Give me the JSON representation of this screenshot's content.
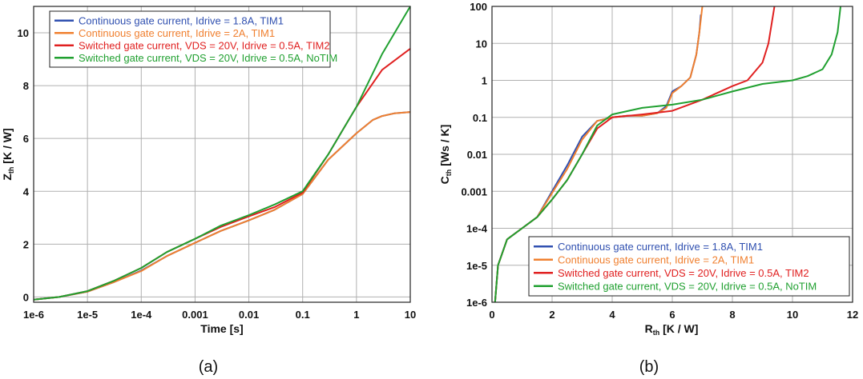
{
  "colors": {
    "ci18": "#3050b0",
    "ci2": "#f08030",
    "sw_tim2": "#e02020",
    "sw_notim": "#20a030"
  },
  "chart_data": [
    {
      "type": "line",
      "caption": "(a)",
      "xlabel": "Time [s]",
      "ylabel_main": "Z",
      "ylabel_sub": "th",
      "ylabel_unit": " [K / W]",
      "xscale": "log",
      "xlim": [
        1e-06,
        10
      ],
      "ylim": [
        -0.2,
        11
      ],
      "grid": true,
      "legend_position": "top-left",
      "xticks": [
        {
          "v": 1e-06,
          "label": "1e-6"
        },
        {
          "v": 1e-05,
          "label": "1e-5"
        },
        {
          "v": 0.0001,
          "label": "1e-4"
        },
        {
          "v": 0.001,
          "label": "0.001"
        },
        {
          "v": 0.01,
          "label": "0.01"
        },
        {
          "v": 0.1,
          "label": "0.1"
        },
        {
          "v": 1,
          "label": "1"
        },
        {
          "v": 10,
          "label": "10"
        }
      ],
      "yticks": [
        {
          "v": 0,
          "label": "0"
        },
        {
          "v": 2,
          "label": "2"
        },
        {
          "v": 4,
          "label": "4"
        },
        {
          "v": 6,
          "label": "6"
        },
        {
          "v": 8,
          "label": "8"
        },
        {
          "v": 10,
          "label": "10"
        }
      ],
      "series": [
        {
          "name": "Continuous gate current, Idrive = 1.8A, TIM1",
          "color": "#3050b0",
          "x": [
            1e-06,
            3e-06,
            1e-05,
            3e-05,
            0.0001,
            0.0003,
            0.001,
            0.003,
            0.01,
            0.03,
            0.1,
            0.3,
            1,
            2,
            3,
            5,
            10
          ],
          "y": [
            -0.1,
            0.0,
            0.2,
            0.55,
            1.0,
            1.55,
            2.05,
            2.5,
            2.9,
            3.3,
            3.9,
            5.2,
            6.2,
            6.7,
            6.85,
            6.95,
            7.0
          ]
        },
        {
          "name": "Continuous gate current, Idrive = 2A, TIM1",
          "color": "#f08030",
          "x": [
            1e-06,
            3e-06,
            1e-05,
            3e-05,
            0.0001,
            0.0003,
            0.001,
            0.003,
            0.01,
            0.03,
            0.1,
            0.3,
            1,
            2,
            3,
            5,
            10
          ],
          "y": [
            -0.1,
            0.0,
            0.2,
            0.55,
            0.98,
            1.55,
            2.05,
            2.5,
            2.9,
            3.3,
            3.9,
            5.2,
            6.2,
            6.7,
            6.85,
            6.95,
            7.0
          ]
        },
        {
          "name": "Switched gate current, VDS = 20V, Idrive = 0.5A, TIM2",
          "color": "#e02020",
          "x": [
            1e-06,
            3e-06,
            1e-05,
            3e-05,
            0.0001,
            0.0003,
            0.001,
            0.003,
            0.01,
            0.03,
            0.1,
            0.3,
            1,
            3,
            10
          ],
          "y": [
            -0.1,
            0.0,
            0.22,
            0.6,
            1.1,
            1.7,
            2.2,
            2.65,
            3.05,
            3.4,
            3.95,
            5.4,
            7.2,
            8.6,
            9.4
          ]
        },
        {
          "name": "Switched gate current, VDS = 20V, Idrive = 0.5A, NoTIM",
          "color": "#20a030",
          "x": [
            1e-06,
            3e-06,
            1e-05,
            3e-05,
            0.0001,
            0.0003,
            0.001,
            0.003,
            0.01,
            0.03,
            0.1,
            0.3,
            1,
            3,
            10
          ],
          "y": [
            -0.1,
            0.0,
            0.22,
            0.6,
            1.1,
            1.7,
            2.2,
            2.7,
            3.1,
            3.5,
            4.0,
            5.4,
            7.2,
            9.2,
            11.0
          ]
        }
      ]
    },
    {
      "type": "line",
      "caption": "(b)",
      "xlabel_main": "R",
      "xlabel_sub": "th",
      "xlabel_unit": "  [K / W]",
      "ylabel_main": "C",
      "ylabel_sub": "th",
      "ylabel_unit": " [Ws / K]",
      "yscale": "log",
      "xlim": [
        0,
        12
      ],
      "ylim": [
        1e-06,
        100
      ],
      "grid": true,
      "legend_position": "bottom-right",
      "xticks": [
        {
          "v": 0,
          "label": "0"
        },
        {
          "v": 2,
          "label": "2"
        },
        {
          "v": 4,
          "label": "4"
        },
        {
          "v": 6,
          "label": "6"
        },
        {
          "v": 8,
          "label": "8"
        },
        {
          "v": 10,
          "label": "10"
        },
        {
          "v": 12,
          "label": "12"
        }
      ],
      "yticks": [
        {
          "v": 1e-06,
          "label": "1e-6"
        },
        {
          "v": 1e-05,
          "label": "1e-5"
        },
        {
          "v": 0.0001,
          "label": "1e-4"
        },
        {
          "v": 0.001,
          "label": "0.001"
        },
        {
          "v": 0.01,
          "label": "0.01"
        },
        {
          "v": 0.1,
          "label": "0.1"
        },
        {
          "v": 1,
          "label": "1"
        },
        {
          "v": 10,
          "label": "10"
        },
        {
          "v": 100,
          "label": "100"
        }
      ],
      "series": [
        {
          "name": "Continuous gate current, Idrive = 1.8A, TIM1",
          "color": "#3050b0",
          "x": [
            0.1,
            0.2,
            0.5,
            1.0,
            1.5,
            2.0,
            2.5,
            3.0,
            3.5,
            4.0,
            4.5,
            5.0,
            5.5,
            5.8,
            6.0,
            6.3,
            6.6,
            6.8,
            6.9,
            6.95
          ],
          "y": [
            1e-06,
            1e-05,
            5e-05,
            0.0001,
            0.0002,
            0.001,
            0.005,
            0.03,
            0.08,
            0.1,
            0.11,
            0.11,
            0.13,
            0.2,
            0.5,
            0.7,
            1.2,
            5,
            20,
            60
          ]
        },
        {
          "name": "Continuous gate current, Idrive = 2A, TIM1",
          "color": "#f08030",
          "x": [
            0.1,
            0.2,
            0.5,
            1.0,
            1.5,
            2.0,
            2.5,
            3.0,
            3.5,
            4.0,
            4.5,
            5.0,
            5.5,
            5.8,
            6.0,
            6.3,
            6.6,
            6.8,
            6.9,
            7.0
          ],
          "y": [
            1e-06,
            1e-05,
            5e-05,
            0.0001,
            0.0002,
            0.0009,
            0.004,
            0.025,
            0.08,
            0.1,
            0.11,
            0.11,
            0.13,
            0.18,
            0.45,
            0.7,
            1.2,
            5,
            20,
            100
          ]
        },
        {
          "name": "Switched gate current, VDS = 20V, Idrive = 0.5A, TIM2",
          "color": "#e02020",
          "x": [
            0.1,
            0.2,
            0.5,
            1.0,
            1.5,
            2.0,
            2.5,
            3.0,
            3.5,
            4.0,
            5.0,
            6.0,
            7.0,
            8.0,
            8.5,
            9.0,
            9.2,
            9.4
          ],
          "y": [
            1e-06,
            1e-05,
            5e-05,
            0.0001,
            0.0002,
            0.0006,
            0.002,
            0.01,
            0.05,
            0.1,
            0.12,
            0.15,
            0.3,
            0.7,
            1.0,
            3,
            10,
            100
          ]
        },
        {
          "name": "Switched gate current, VDS = 20V, Idrive = 0.5A, NoTIM",
          "color": "#20a030",
          "x": [
            0.1,
            0.2,
            0.5,
            1.0,
            1.5,
            2.0,
            2.5,
            3.0,
            3.5,
            4.0,
            5.0,
            6.0,
            7.0,
            8.0,
            9.0,
            10.0,
            10.5,
            11.0,
            11.3,
            11.5,
            11.6
          ],
          "y": [
            1e-06,
            1e-05,
            5e-05,
            0.0001,
            0.0002,
            0.0006,
            0.002,
            0.01,
            0.06,
            0.12,
            0.18,
            0.22,
            0.3,
            0.5,
            0.8,
            1.0,
            1.3,
            2,
            5,
            20,
            100
          ]
        }
      ]
    }
  ]
}
